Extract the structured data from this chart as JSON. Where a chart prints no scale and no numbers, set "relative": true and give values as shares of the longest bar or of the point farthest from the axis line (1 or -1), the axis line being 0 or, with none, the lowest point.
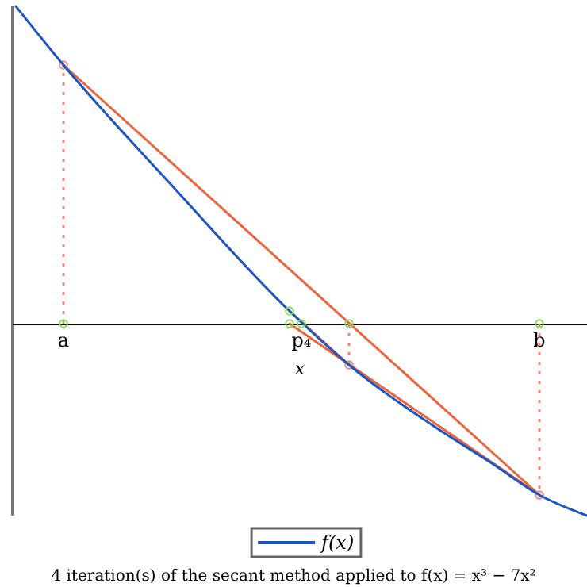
{
  "chart_data": {
    "type": "line",
    "relative": true,
    "title": "4 iteration(s) of the secant method applied to f(x) = x³ − 7x²",
    "xlabel": "x",
    "categories": [
      null,
      null,
      null,
      null,
      "a",
      null,
      null,
      null,
      null,
      null,
      null,
      null,
      null,
      null,
      null,
      null,
      null,
      null,
      null,
      null,
      null,
      null,
      null,
      null,
      "p₄",
      null,
      null,
      null,
      null,
      null,
      null,
      null,
      null,
      null,
      null,
      null,
      null,
      null,
      null,
      null,
      null,
      null,
      null,
      null,
      "b",
      null,
      null,
      null,
      null
    ],
    "legend": "bottom",
    "line_style": "solid",
    "marker": "none",
    "series": [
      {
        "name": "f(x)",
        "color": "#1a56c4",
        "values": [
          1,
          null,
          null,
          null,
          0.815,
          null,
          null,
          null,
          null,
          null,
          null,
          null,
          null,
          0.44,
          null,
          null,
          null,
          null,
          null,
          null,
          null,
          null,
          null,
          0.04,
          null,
          null,
          null,
          null,
          -0.13,
          null,
          null,
          null,
          null,
          null,
          null,
          -0.32,
          null,
          null,
          null,
          null,
          -0.44,
          null,
          null,
          null,
          -0.54,
          null,
          null,
          null,
          -0.605
        ]
      },
      {
        "color": "#f0643c",
        "values": [
          null,
          null,
          null,
          null,
          0.815,
          null,
          null,
          null,
          null,
          null,
          null,
          null,
          null,
          null,
          null,
          null,
          null,
          null,
          null,
          null,
          null,
          null,
          null,
          null,
          null,
          null,
          null,
          null,
          null,
          null,
          null,
          null,
          null,
          null,
          null,
          null,
          null,
          null,
          null,
          null,
          null,
          null,
          null,
          null,
          -0.54,
          null,
          null,
          null,
          null
        ]
      },
      {
        "color": "#f0643c",
        "values": [
          null,
          null,
          null,
          null,
          null,
          null,
          null,
          null,
          null,
          null,
          null,
          null,
          null,
          null,
          null,
          null,
          null,
          null,
          null,
          null,
          null,
          null,
          null,
          0,
          null,
          null,
          null,
          null,
          null,
          null,
          null,
          null,
          null,
          null,
          null,
          null,
          null,
          null,
          null,
          null,
          null,
          null,
          null,
          null,
          -0.54,
          null,
          null,
          null,
          null
        ]
      },
      {
        "color": "#f0643c",
        "values": [
          null,
          null,
          null,
          null,
          null,
          null,
          null,
          null,
          null,
          null,
          null,
          null,
          null,
          null,
          null,
          null,
          null,
          null,
          null,
          null,
          null,
          null,
          null,
          0.04,
          null,
          null,
          null,
          null,
          -0.13,
          null,
          null,
          null,
          null,
          null,
          null,
          null,
          null,
          null,
          null,
          null,
          null,
          null,
          null,
          null,
          null,
          null,
          null,
          null,
          null
        ]
      },
      {
        "type": "lollipop",
        "color": "#f08878",
        "line_style": "dotted",
        "marker": "circle",
        "values": [
          null,
          null,
          null,
          null,
          0.815,
          null,
          null,
          null,
          null,
          null,
          null,
          null,
          null,
          null,
          null,
          null,
          null,
          null,
          null,
          null,
          null,
          null,
          null,
          null,
          null,
          null,
          null,
          null,
          -0.13,
          null,
          null,
          null,
          null,
          null,
          null,
          null,
          null,
          null,
          null,
          null,
          null,
          null,
          null,
          null,
          -0.54,
          null,
          null,
          null,
          null
        ]
      },
      {
        "type": "scatter",
        "color": "#86e05a",
        "marker": "circle",
        "values": [
          null,
          null,
          null,
          null,
          null,
          null,
          null,
          null,
          null,
          null,
          null,
          null,
          null,
          null,
          null,
          null,
          null,
          null,
          null,
          null,
          null,
          null,
          null,
          0.04,
          null,
          null,
          null,
          null,
          null,
          null,
          null,
          null,
          null,
          null,
          null,
          null,
          null,
          null,
          null,
          null,
          null,
          null,
          null,
          null,
          null,
          null,
          null,
          null,
          null
        ]
      },
      {
        "type": "scatter",
        "color": "#86e05a",
        "marker": "circle",
        "values": [
          null,
          null,
          null,
          null,
          0,
          null,
          null,
          null,
          null,
          null,
          null,
          null,
          null,
          null,
          null,
          null,
          null,
          null,
          null,
          null,
          null,
          null,
          null,
          0,
          0,
          null,
          null,
          null,
          0,
          null,
          null,
          null,
          null,
          null,
          null,
          null,
          null,
          null,
          null,
          null,
          null,
          null,
          null,
          null,
          0,
          null,
          null,
          null,
          null
        ]
      }
    ]
  }
}
